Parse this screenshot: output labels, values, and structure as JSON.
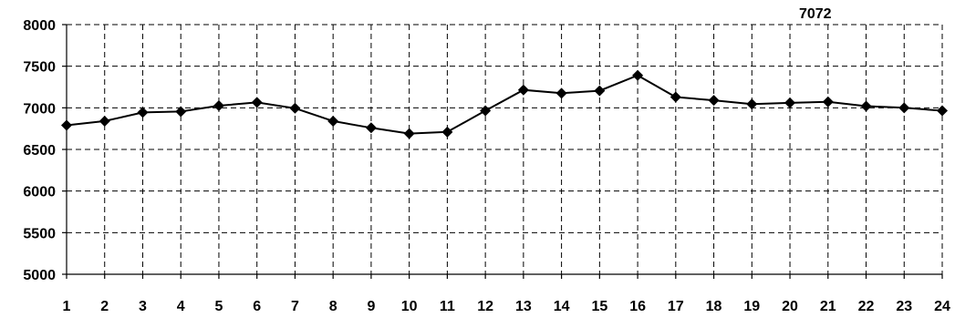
{
  "chart_data": {
    "type": "line",
    "title": "",
    "xlabel": "",
    "ylabel": "",
    "x": [
      1,
      2,
      3,
      4,
      5,
      6,
      7,
      8,
      9,
      10,
      11,
      12,
      13,
      14,
      15,
      16,
      17,
      18,
      19,
      20,
      21,
      22,
      23,
      24
    ],
    "series": [
      {
        "values": [
          6790,
          6840,
          6945,
          6955,
          7025,
          7065,
          6995,
          6840,
          6760,
          6690,
          6710,
          6965,
          7215,
          7175,
          7205,
          7390,
          7130,
          7090,
          7045,
          7060,
          7072,
          7020,
          7000,
          6965
        ],
        "color": "#000000",
        "marker": "diamond"
      }
    ],
    "ylim": [
      5000,
      8000
    ],
    "yticks": [
      5000,
      5500,
      6000,
      6500,
      7000,
      7500,
      8000
    ],
    "xticks": [
      1,
      2,
      3,
      4,
      5,
      6,
      7,
      8,
      9,
      10,
      11,
      12,
      13,
      14,
      15,
      16,
      17,
      18,
      19,
      20,
      21,
      22,
      23,
      24
    ],
    "grid": true,
    "legend": "none",
    "annotations": [
      {
        "text": "7072",
        "x": 21,
        "y": 7072
      }
    ]
  }
}
